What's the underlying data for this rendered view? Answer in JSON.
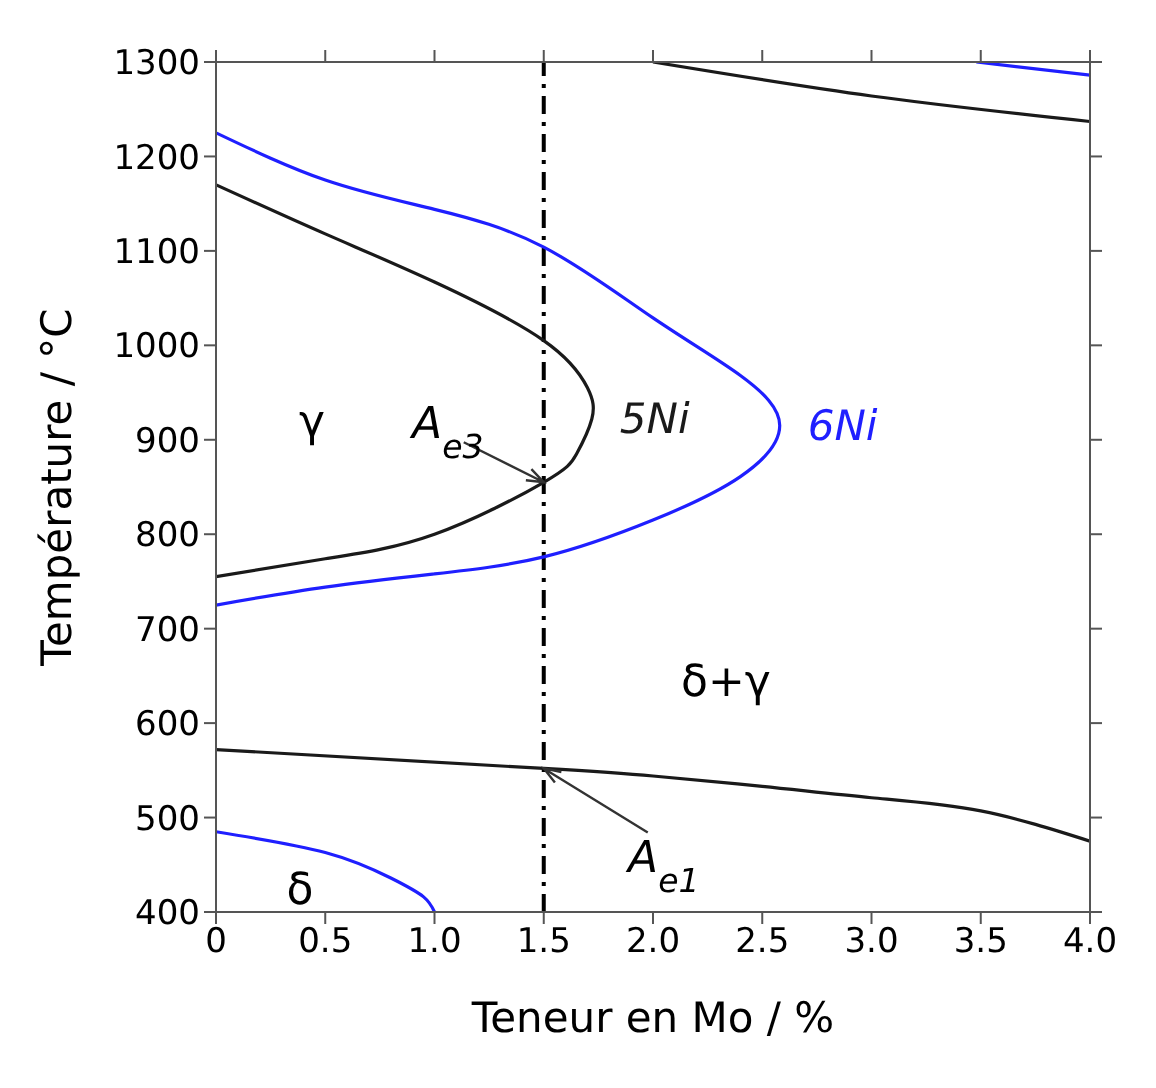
{
  "chart_data": {
    "type": "line",
    "xlabel": "Teneur en Mo / %",
    "ylabel": "Température / °C",
    "xlim": [
      0,
      4
    ],
    "xticks": [
      0,
      0.5,
      {
        "value": 1,
        "label": "1.0"
      },
      1.5,
      {
        "value": 2,
        "label": "2.0"
      },
      2.5,
      {
        "value": 3,
        "label": "3.0"
      },
      3.5,
      {
        "value": 4,
        "label": "4.0"
      }
    ],
    "ylim": [
      400,
      1300
    ],
    "yticks": [
      400,
      500,
      600,
      700,
      800,
      900,
      1000,
      1100,
      1200,
      1300
    ],
    "marker": "none",
    "line_style": "solid",
    "series": [
      {
        "name": "5Ni",
        "color": "#1a1a1a",
        "x": [
          0,
          0.5,
          1.0,
          1.5,
          1.7,
          1.72,
          1.65,
          1.5,
          1.0,
          0.5,
          0
        ],
        "values": [
          1170,
          1118,
          1067,
          1005,
          955,
          922,
          885,
          855,
          800,
          774,
          755
        ]
      },
      {
        "name": "6Ni",
        "color": "#1f1fff",
        "x": [
          0,
          0.5,
          1.0,
          1.5,
          2.0,
          2.4,
          2.58,
          2.4,
          2.0,
          1.5,
          1.0,
          0.5,
          0
        ],
        "values": [
          1225,
          1175,
          1144,
          1104,
          1029,
          968,
          915,
          861,
          815,
          776,
          758,
          744,
          725
        ]
      },
      {
        "color": "#1a1a1a",
        "x": [
          2.0,
          3.0,
          4.0
        ],
        "values": [
          1300,
          1264,
          1237
        ]
      },
      {
        "color": "#1f1fff",
        "x": [
          3.48,
          4.0
        ],
        "values": [
          1300,
          1286
        ]
      },
      {
        "color": "#1a1a1a",
        "x": [
          0,
          1.5,
          2.0,
          2.5,
          3.0,
          3.5,
          4.0
        ],
        "values": [
          572,
          552,
          544,
          533,
          521,
          507,
          475
        ]
      },
      {
        "color": "#1f1fff",
        "x": [
          0,
          0.5,
          0.8,
          0.95,
          1.0
        ],
        "values": [
          485,
          463,
          436,
          416,
          400
        ]
      }
    ],
    "ref_lines": [
      {
        "axis": "x",
        "value": 1.5,
        "color": "#000000",
        "line_style": "dashed"
      }
    ],
    "annotations": [
      "γ",
      "δ+γ",
      "δ",
      {
        "text": "A$_{e3}$",
        "x": 1.5,
        "y": 855
      },
      {
        "text": "A$_{e1}$",
        "x": 1.5,
        "y": 552
      }
    ]
  }
}
